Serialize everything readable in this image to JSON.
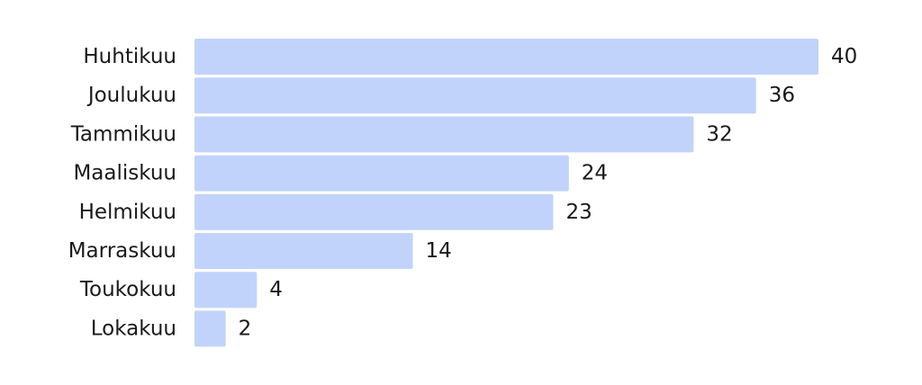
{
  "chart_data": {
    "type": "bar",
    "orientation": "horizontal",
    "categories": [
      "Huhtikuu",
      "Joulukuu",
      "Tammikuu",
      "Maaliskuu",
      "Helmikuu",
      "Marraskuu",
      "Toukokuu",
      "Lokakuu"
    ],
    "values": [
      40,
      36,
      32,
      24,
      23,
      14,
      4,
      2
    ],
    "data_labels": [
      "40",
      "36",
      "32",
      "24",
      "23",
      "14",
      "4",
      "2"
    ],
    "xlim": [
      0,
      40
    ],
    "grid": false,
    "axis_lines": false,
    "legend": "none",
    "bar_color": "#c2d3fb",
    "text_color": "#1a1a1a"
  }
}
